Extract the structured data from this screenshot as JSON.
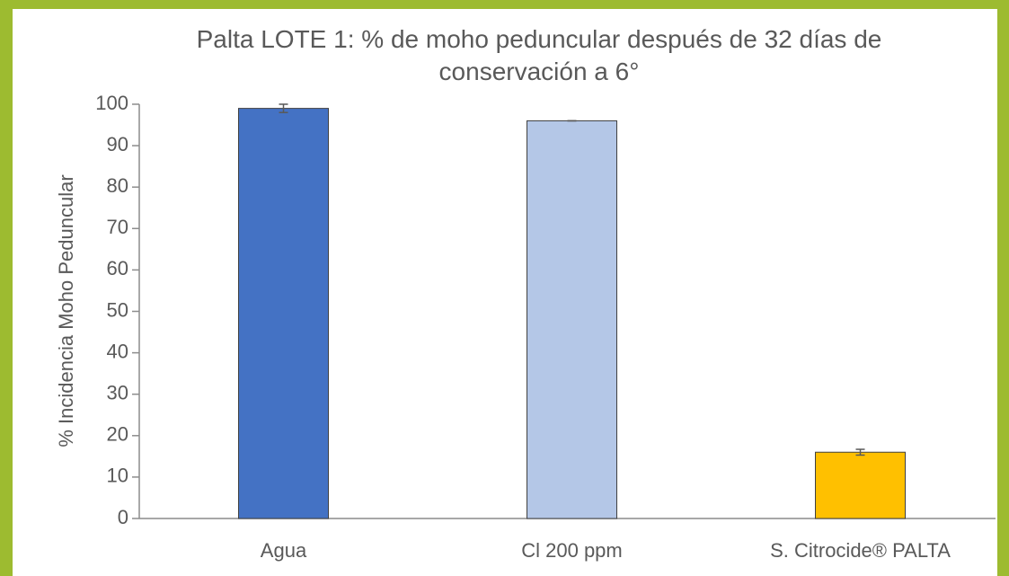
{
  "chart_data": {
    "type": "bar",
    "title": "Palta LOTE 1: % de moho peduncular después de 32 días de conservación a 6°",
    "y_label": "% Incidencia Moho Peduncular",
    "categories": [
      "Agua",
      "Cl 200 ppm",
      "S. Citrocide® PALTA"
    ],
    "values": [
      99,
      96,
      16
    ],
    "errors": [
      1,
      0,
      0.7
    ],
    "colors": [
      "#4472c4",
      "#b4c7e7",
      "#ffc000"
    ],
    "ylim": [
      0,
      100
    ],
    "yticks": [
      0,
      10,
      20,
      30,
      40,
      50,
      60,
      70,
      80,
      90,
      100
    ],
    "grid": false
  }
}
